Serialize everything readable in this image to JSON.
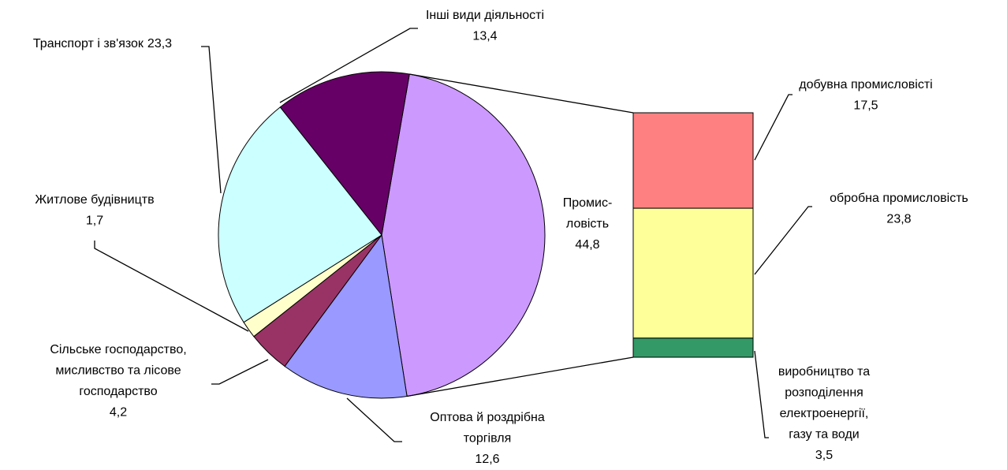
{
  "chart_data": {
    "type": "pie-of-bar",
    "categories": [
      [
        "Промис-",
        "ловість"
      ],
      [
        "Оптова й роздрібна",
        "торгівля"
      ],
      [
        "Сільське господарство,",
        "мисливство та лісове",
        "господарство"
      ],
      [
        "Житлове будівництв"
      ],
      [
        "Транспорт і зв'язок"
      ],
      [
        "Інші види діяльності"
      ]
    ],
    "values": [
      44.8,
      12.6,
      4.2,
      1.7,
      23.3,
      13.4
    ],
    "value_labels": [
      "44,8",
      "12,6",
      "4,2",
      "1,7",
      "23,3",
      "13,4"
    ],
    "colors": [
      "#cc99ff",
      "#9999ff",
      "#993366",
      "#ffffcc",
      "#ccffff",
      "#660066"
    ],
    "bar": {
      "categories": [
        [
          "добувна промисловісті"
        ],
        [
          "обробна промисловість"
        ],
        [
          "виробництво та",
          "розподілення",
          "електроенергії,",
          "газу та води"
        ]
      ],
      "values": [
        17.5,
        23.8,
        3.5
      ],
      "value_labels": [
        "17,5",
        "23,8",
        "3,5"
      ],
      "colors": [
        "#ff8080",
        "#ffff99",
        "#339966"
      ]
    }
  }
}
